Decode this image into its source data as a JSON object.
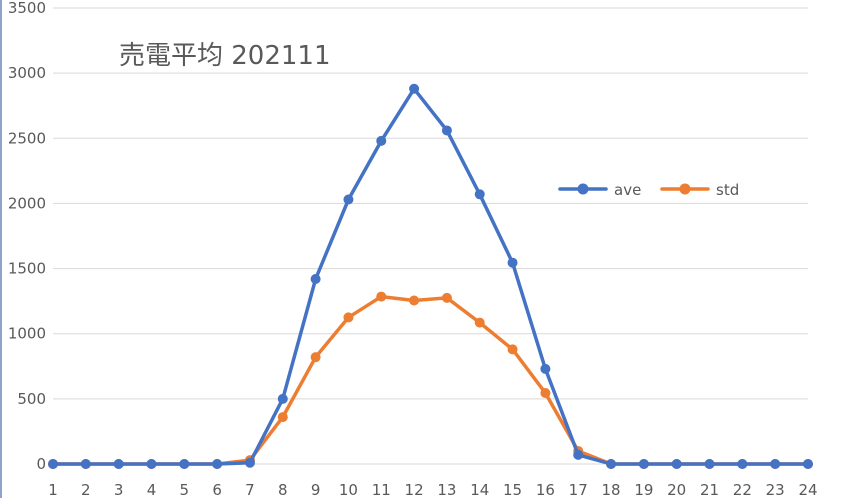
{
  "chart_data": {
    "type": "line",
    "title": "売電平均 202111",
    "xlabel": "",
    "ylabel": "",
    "categories": [
      "1",
      "2",
      "3",
      "4",
      "5",
      "6",
      "7",
      "8",
      "9",
      "10",
      "11",
      "12",
      "13",
      "14",
      "15",
      "16",
      "17",
      "18",
      "19",
      "20",
      "21",
      "22",
      "23",
      "24"
    ],
    "ylim": [
      0,
      3500
    ],
    "yticks": [
      0,
      500,
      1000,
      1500,
      2000,
      2500,
      3000,
      3500
    ],
    "grid": true,
    "legend_position": "right",
    "series": [
      {
        "name": "ave",
        "color": "#4472c4",
        "values": [
          0,
          0,
          0,
          0,
          0,
          0,
          10,
          500,
          1420,
          2030,
          2480,
          2880,
          2560,
          2070,
          1545,
          730,
          70,
          0,
          0,
          0,
          0,
          0,
          0,
          0
        ]
      },
      {
        "name": "std",
        "color": "#ed7d31",
        "values": [
          0,
          0,
          0,
          0,
          0,
          0,
          30,
          360,
          820,
          1125,
          1285,
          1255,
          1275,
          1085,
          880,
          545,
          100,
          0,
          0,
          0,
          0,
          0,
          0,
          0
        ]
      }
    ]
  }
}
